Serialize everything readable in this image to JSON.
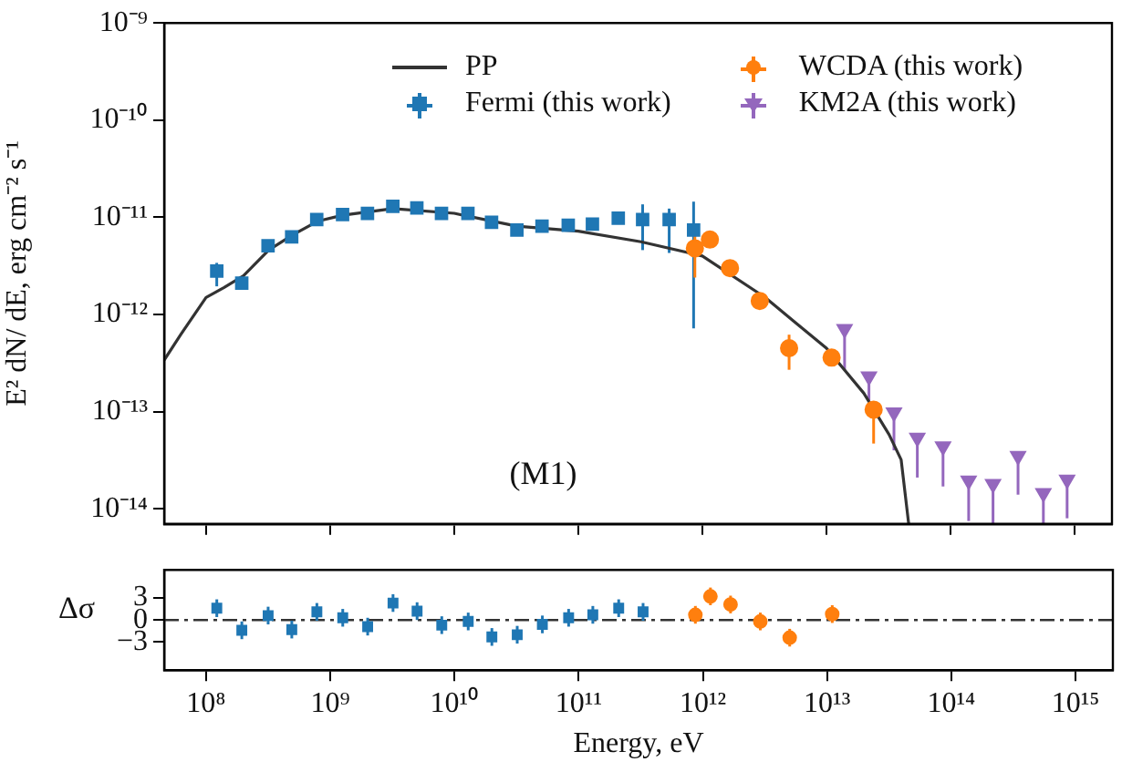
{
  "chart_data": [
    {
      "type": "scatter",
      "ylabel": "E² dN/ dE, erg cm⁻² s⁻¹",
      "log": "xy",
      "legend": "top",
      "tick_labels": "y",
      "annotations": [
        "(M1)"
      ],
      "xlim": [
        46000000.0,
        2000000000000000.0
      ],
      "ylim": [
        7e-15,
        1e-09
      ],
      "xticks": [
        {
          "value": 100000000.0,
          "label": null
        },
        {
          "value": 1000000000.0,
          "label": null
        },
        {
          "value": 10000000000.0,
          "label": null
        },
        {
          "value": 100000000000.0,
          "label": null
        },
        {
          "value": 1000000000000.0,
          "label": null
        },
        {
          "value": 10000000000000.0,
          "label": null
        },
        {
          "value": 100000000000000.0,
          "label": null
        },
        {
          "value": 1000000000000000.0,
          "label": null
        }
      ],
      "yticks": [
        {
          "value": 1e-14,
          "label": "10⁻¹⁴"
        },
        {
          "value": 1e-13,
          "label": "10⁻¹³"
        },
        {
          "value": 1e-12,
          "label": "10⁻¹²"
        },
        {
          "value": 1e-11,
          "label": "10⁻¹¹"
        },
        {
          "value": 1e-10,
          "label": "10⁻¹⁰"
        },
        {
          "value": 1e-09,
          "label": "10⁻⁹"
        }
      ],
      "series": [
        {
          "name": "PP",
          "type": "line",
          "color": "#333333",
          "marker": "none",
          "x": [
            46000000.0,
            63000000.0,
            100000000.0,
            140000000.0,
            200000000.0,
            320000000.0,
            500000000.0,
            790000000.0,
            1260000000.0,
            3200000000.0,
            10000000000.0,
            32000000000.0,
            100000000000.0,
            320000000000.0,
            1000000000000.0,
            3200000000000.0,
            5600000000000.0,
            10000000000000.0,
            20000000000000.0,
            32000000000000.0,
            40000000000000.0,
            46000000000000.0
          ],
          "values": [
            3.4e-13,
            6.3e-13,
            1.5e-12,
            1.9e-12,
            2.5e-12,
            4.6e-12,
            6.6e-12,
            9.1e-12,
            1.05e-11,
            1.23e-11,
            1.1e-11,
            8.1e-12,
            7.2e-12,
            5.6e-12,
            4e-12,
            1.5e-12,
            8.3e-13,
            4.5e-13,
            1.55e-13,
            5.8e-14,
            3.2e-14,
            7e-15
          ]
        },
        {
          "name": "Fermi (this work)",
          "color": "#1f77b4",
          "marker": "square",
          "x": [
            122000000.0,
            194000000.0,
            316000000.0,
            490000000.0,
            780000000.0,
            1260000000.0,
            2000000000.0,
            3200000000.0,
            5000000000.0,
            7900000000.0,
            12900000000.0,
            20000000000.0,
            32000000000.0,
            51000000000.0,
            83000000000.0,
            130000000000.0,
            210000000000.0,
            330000000000.0,
            540000000000.0,
            850000000000.0
          ],
          "values": [
            2.8e-12,
            2.1e-12,
            5.1e-12,
            6.3e-12,
            9.5e-12,
            1.07e-11,
            1.1e-11,
            1.3e-11,
            1.25e-11,
            1.1e-11,
            1.1e-11,
            8.9e-12,
            7.4e-12,
            8.1e-12,
            8.3e-12,
            8.5e-12,
            9.8e-12,
            9.5e-12,
            9.5e-12,
            7.4e-12
          ],
          "errors": [
            [
              1.95e-12,
              3.4e-12
            ],
            null,
            null,
            null,
            null,
            null,
            null,
            null,
            null,
            null,
            null,
            null,
            null,
            null,
            null,
            null,
            null,
            [
              4.6e-12,
              1.36e-11
            ],
            [
              4.3e-12,
              1.23e-11
            ],
            [
              7.2e-13,
              1.45e-11
            ]
          ]
        },
        {
          "name": "WCDA (this work)",
          "color": "#ff7f0e",
          "marker": "circle",
          "x": [
            870000000000.0,
            1150000000000.0,
            1670000000000.0,
            2900000000000.0,
            5000000000000.0,
            11000000000000.0,
            24000000000000.0
          ],
          "values": [
            4.8e-12,
            5.9e-12,
            3e-12,
            1.38e-12,
            4.5e-13,
            3.6e-13,
            1.05e-13
          ],
          "errors": [
            [
              2.4e-12,
              7.9e-12
            ],
            null,
            null,
            null,
            [
              2.7e-13,
              6.2e-13
            ],
            null,
            [
              4.7e-14,
              1.2e-13
            ]
          ]
        },
        {
          "name": "KM2A (this work)",
          "color": "#9467bd",
          "marker": "triangle",
          "x": [
            14000000000000.0,
            22000000000000.0,
            35000000000000.0,
            54000000000000.0,
            87000000000000.0,
            140000000000000.0,
            220000000000000.0,
            350000000000000.0,
            560000000000000.0,
            870000000000000.0
          ],
          "values": [
            7.1e-13,
            2.3e-13,
            9.8e-14,
            5.4e-14,
            4.4e-14,
            1.95e-14,
            1.8e-14,
            3.5e-14,
            1.45e-14,
            2e-14
          ],
          "errors": [
            [
              2.7e-13,
              7.1e-13
            ],
            [
              1.3e-13,
              2.3e-13
            ],
            [
              4e-14,
              9.8e-14
            ],
            [
              2.1e-14,
              5.4e-14
            ],
            [
              1.7e-14,
              4.4e-14
            ],
            [
              7.5e-15,
              1.95e-14
            ],
            [
              7e-15,
              1.8e-14
            ],
            [
              1.4e-14,
              3.5e-14
            ],
            [
              7e-15,
              1.45e-14
            ],
            [
              8e-15,
              2e-14
            ]
          ]
        }
      ]
    },
    {
      "type": "scatter",
      "xlabel": "Energy, eV",
      "ylabel": "Δσ",
      "log": "x",
      "xlim": [
        46000000.0,
        2000000000000000.0
      ],
      "ylim": [
        -6.8,
        6.8
      ],
      "xticks": [
        {
          "value": 100000000.0,
          "label": "10⁸"
        },
        {
          "value": 1000000000.0,
          "label": "10⁹"
        },
        {
          "value": 10000000000.0,
          "label": "10¹⁰"
        },
        {
          "value": 100000000000.0,
          "label": "10¹¹"
        },
        {
          "value": 1000000000000.0,
          "label": "10¹²"
        },
        {
          "value": 10000000000000.0,
          "label": "10¹³"
        },
        {
          "value": 100000000000000.0,
          "label": "10¹⁴"
        },
        {
          "value": 1000000000000000.0,
          "label": "10¹⁵"
        }
      ],
      "yticks": [
        {
          "value": -3,
          "label": "−3"
        },
        0,
        3
      ],
      "ref_lines": [
        {
          "axis": "y",
          "value": 0,
          "color": "#333333",
          "line_style": "dashed"
        }
      ],
      "series": [
        {
          "color": "#1f77b4",
          "marker": "square",
          "x": [
            122000000.0,
            194000000.0,
            316000000.0,
            490000000.0,
            780000000.0,
            1260000000.0,
            2000000000.0,
            3200000000.0,
            5000000000.0,
            7900000000.0,
            12900000000.0,
            20000000000.0,
            32000000000.0,
            51000000000.0,
            83000000000.0,
            130000000000.0,
            210000000000.0,
            330000000000.0
          ],
          "values": [
            1.6,
            -1.4,
            0.6,
            -1.3,
            1.1,
            0.3,
            -0.9,
            2.3,
            1.2,
            -0.7,
            -0.2,
            -2.3,
            -2,
            -0.6,
            0.3,
            0.7,
            1.6,
            1.1
          ],
          "errors": [
            1.2,
            1.2,
            1.2,
            1.2,
            1.2,
            1.2,
            1.2,
            1.2,
            1.2,
            1.2,
            1.2,
            1.2,
            1.2,
            1.2,
            1.2,
            1.2,
            1.2,
            1.2
          ]
        },
        {
          "color": "#ff7f0e",
          "marker": "circle",
          "x": [
            870000000000.0,
            1150000000000.0,
            1670000000000.0,
            2900000000000.0,
            5000000000000.0,
            11000000000000.0
          ],
          "values": [
            0.7,
            3.2,
            2.1,
            -0.2,
            -2.4,
            0.8
          ],
          "errors": [
            1.2,
            1.2,
            1.2,
            1.2,
            1.2,
            1.2
          ]
        }
      ]
    }
  ]
}
